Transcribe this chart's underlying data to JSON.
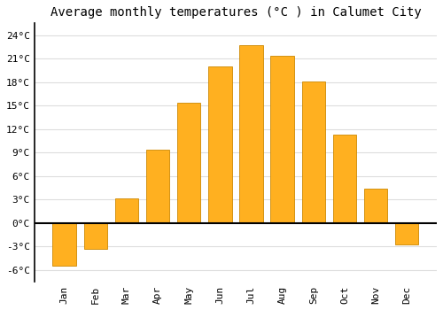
{
  "title": "Average monthly temperatures (°C ) in Calumet City",
  "months": [
    "Jan",
    "Feb",
    "Mar",
    "Apr",
    "May",
    "Jun",
    "Jul",
    "Aug",
    "Sep",
    "Oct",
    "Nov",
    "Dec"
  ],
  "values": [
    -5.5,
    -3.3,
    3.1,
    9.3,
    15.3,
    20.0,
    22.7,
    21.4,
    18.1,
    11.3,
    4.4,
    -2.8
  ],
  "bar_color": "#FFB020",
  "bar_edge_color": "#CC8800",
  "background_color": "#FFFFFF",
  "grid_color": "#DDDDDD",
  "ylim": [
    -7.5,
    25.5
  ],
  "yticks": [
    -6,
    -3,
    0,
    3,
    6,
    9,
    12,
    15,
    18,
    21,
    24
  ],
  "ytick_labels": [
    "-6°C",
    "-3°C",
    "0°C",
    "3°C",
    "6°C",
    "9°C",
    "12°C",
    "15°C",
    "18°C",
    "21°C",
    "24°C"
  ],
  "title_fontsize": 10,
  "tick_fontsize": 8,
  "font_family": "monospace"
}
